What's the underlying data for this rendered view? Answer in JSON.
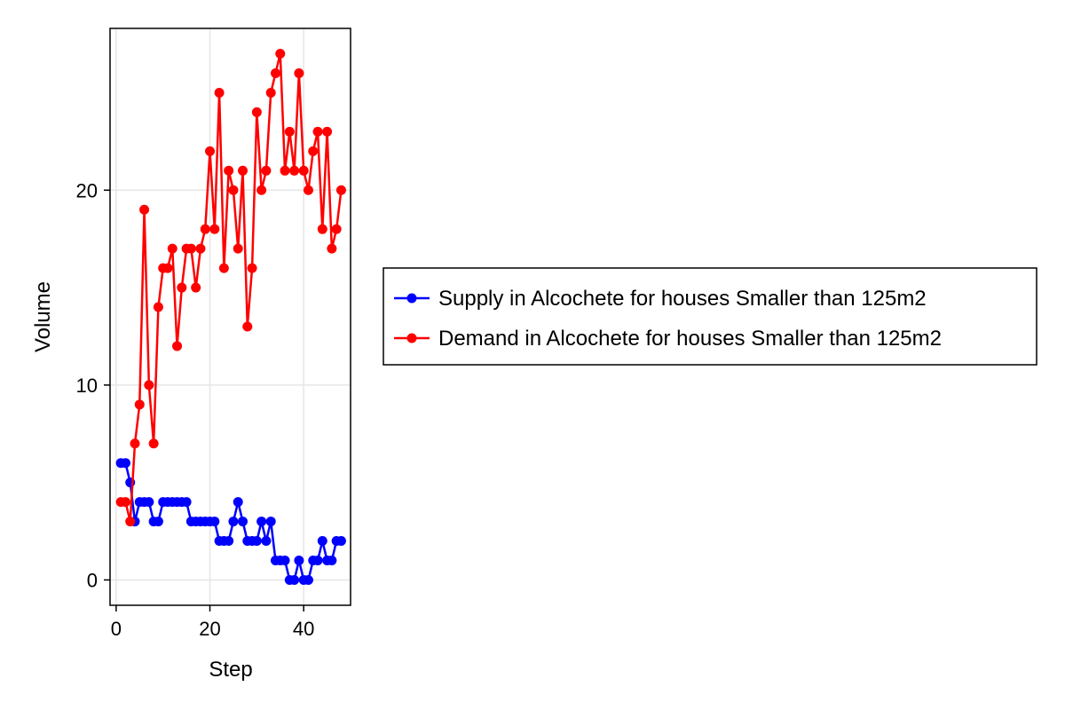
{
  "chart_data": {
    "type": "line",
    "xlabel": "Step",
    "ylabel": "Volume",
    "xlim": [
      -1.3,
      50
    ],
    "ylim": [
      -1.3,
      28.3
    ],
    "x_ticks": [
      0,
      20,
      40
    ],
    "y_ticks": [
      0,
      10,
      20
    ],
    "grid": true,
    "legend_position": "right",
    "x": [
      1,
      2,
      3,
      4,
      5,
      6,
      7,
      8,
      9,
      10,
      11,
      12,
      13,
      14,
      15,
      16,
      17,
      18,
      19,
      20,
      21,
      22,
      23,
      24,
      25,
      26,
      27,
      28,
      29,
      30,
      31,
      32,
      33,
      34,
      35,
      36,
      37,
      38,
      39,
      40,
      41,
      42,
      43,
      44,
      45,
      46,
      47,
      48
    ],
    "series": [
      {
        "name": "Supply in Alcochete for houses Smaller than 125m2",
        "color": "#0000ff",
        "values": [
          6,
          6,
          5,
          3,
          4,
          4,
          4,
          3,
          3,
          4,
          4,
          4,
          4,
          4,
          4,
          3,
          3,
          3,
          3,
          3,
          3,
          2,
          2,
          2,
          3,
          4,
          3,
          2,
          2,
          2,
          3,
          2,
          3,
          1,
          1,
          1,
          0,
          0,
          1,
          0,
          0,
          1,
          1,
          2,
          1,
          1,
          2,
          2
        ]
      },
      {
        "name": "Demand in Alcochete for houses Smaller than 125m2",
        "color": "#ff0000",
        "values": [
          4,
          4,
          3,
          7,
          9,
          19,
          10,
          7,
          14,
          16,
          16,
          17,
          12,
          15,
          17,
          17,
          15,
          17,
          18,
          22,
          18,
          25,
          16,
          21,
          20,
          17,
          21,
          13,
          16,
          24,
          20,
          21,
          25,
          26,
          27,
          21,
          23,
          21,
          26,
          21,
          20,
          22,
          23,
          18,
          23,
          17,
          18,
          20
        ]
      }
    ]
  }
}
